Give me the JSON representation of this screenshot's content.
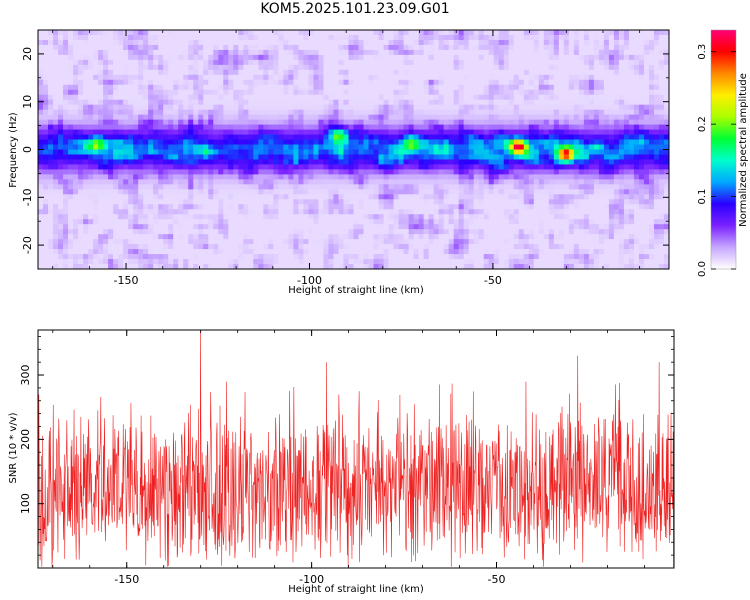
{
  "title": "KOM5.2025.101.23.09.G01",
  "chart_data": [
    {
      "type": "heatmap",
      "xlabel": "Height of straight line (km)",
      "ylabel": "Frequency (Hz)",
      "xlim": [
        -174,
        -2
      ],
      "ylim": [
        -25,
        25
      ],
      "xticks": [
        -150,
        -100,
        -50
      ],
      "yticks": [
        -20,
        -10,
        0,
        10,
        20
      ],
      "colorbar": {
        "label": "Normalized spectral amplitude",
        "range": [
          0.0,
          0.33
        ],
        "ticks": [
          "0.0",
          "0.1",
          "0.2",
          "0.3"
        ],
        "colors": [
          "#ffffff",
          "#c7a6ff",
          "#7a22ff",
          "#2b00ff",
          "#00a8ff",
          "#00ffcc",
          "#00ff33",
          "#aaff00",
          "#ffee00",
          "#ff8800",
          "#ff0000",
          "#ff0077"
        ]
      },
      "band": {
        "center_hz": 0,
        "half_width_hz": 5,
        "typical_amplitude": 0.1
      },
      "hotspots": [
        {
          "x": -43,
          "y": 0.5,
          "amplitude": 0.3
        },
        {
          "x": -30,
          "y": -1,
          "amplitude": 0.3
        },
        {
          "x": -158,
          "y": 1,
          "amplitude": 0.2
        },
        {
          "x": -92,
          "y": 3,
          "amplitude": 0.2
        },
        {
          "x": -72,
          "y": 1,
          "amplitude": 0.18
        }
      ]
    },
    {
      "type": "line",
      "xlabel": "Height of straight line (km)",
      "ylabel": "SNR (10 * v/v)",
      "xlim": [
        -174,
        -2
      ],
      "ylim": [
        0,
        370
      ],
      "xticks": [
        -150,
        -100,
        -50
      ],
      "yticks": [
        100,
        200,
        300
      ],
      "series": [
        {
          "color": "#ee2222",
          "mean": 120,
          "typical_min": 10,
          "typical_max": 260,
          "peaks": [
            {
              "x": -130,
              "y": 370
            },
            {
              "x": -96,
              "y": 320
            },
            {
              "x": -28,
              "y": 330
            },
            {
              "x": -6,
              "y": 320
            }
          ]
        }
      ]
    }
  ]
}
